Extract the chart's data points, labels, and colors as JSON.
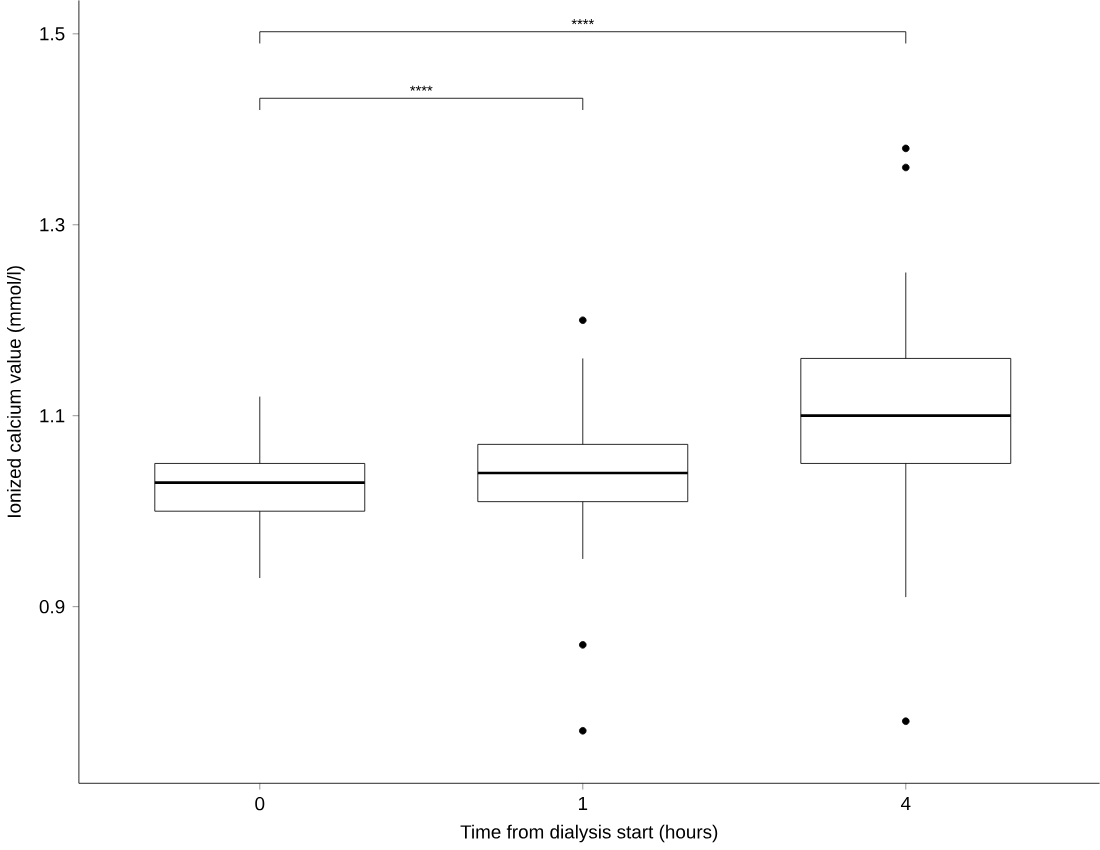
{
  "chart_data": {
    "type": "box",
    "categories": [
      "0",
      "1",
      "4"
    ],
    "boxes": [
      {
        "low": 0.93,
        "q1": 1.0,
        "median": 1.03,
        "q3": 1.05,
        "high": 1.12
      },
      {
        "low": 0.95,
        "q1": 1.01,
        "median": 1.04,
        "q3": 1.07,
        "high": 1.16,
        "outliers": [
          1.2,
          0.86,
          0.77
        ]
      },
      {
        "low": 0.91,
        "q1": 1.05,
        "median": 1.1,
        "q3": 1.16,
        "high": 1.25,
        "outliers": [
          1.38,
          1.36,
          0.78
        ]
      }
    ],
    "color": "#000000",
    "xlabel": "Time from dialysis start (hours)",
    "ylabel": "Ionized calcium value (mmol/l)",
    "ylim": [
      0.715,
      1.535
    ],
    "yticks": [
      0.9,
      1.1,
      1.3,
      1.5
    ],
    "annotations": [
      "****",
      "****"
    ],
    "grid": false
  }
}
